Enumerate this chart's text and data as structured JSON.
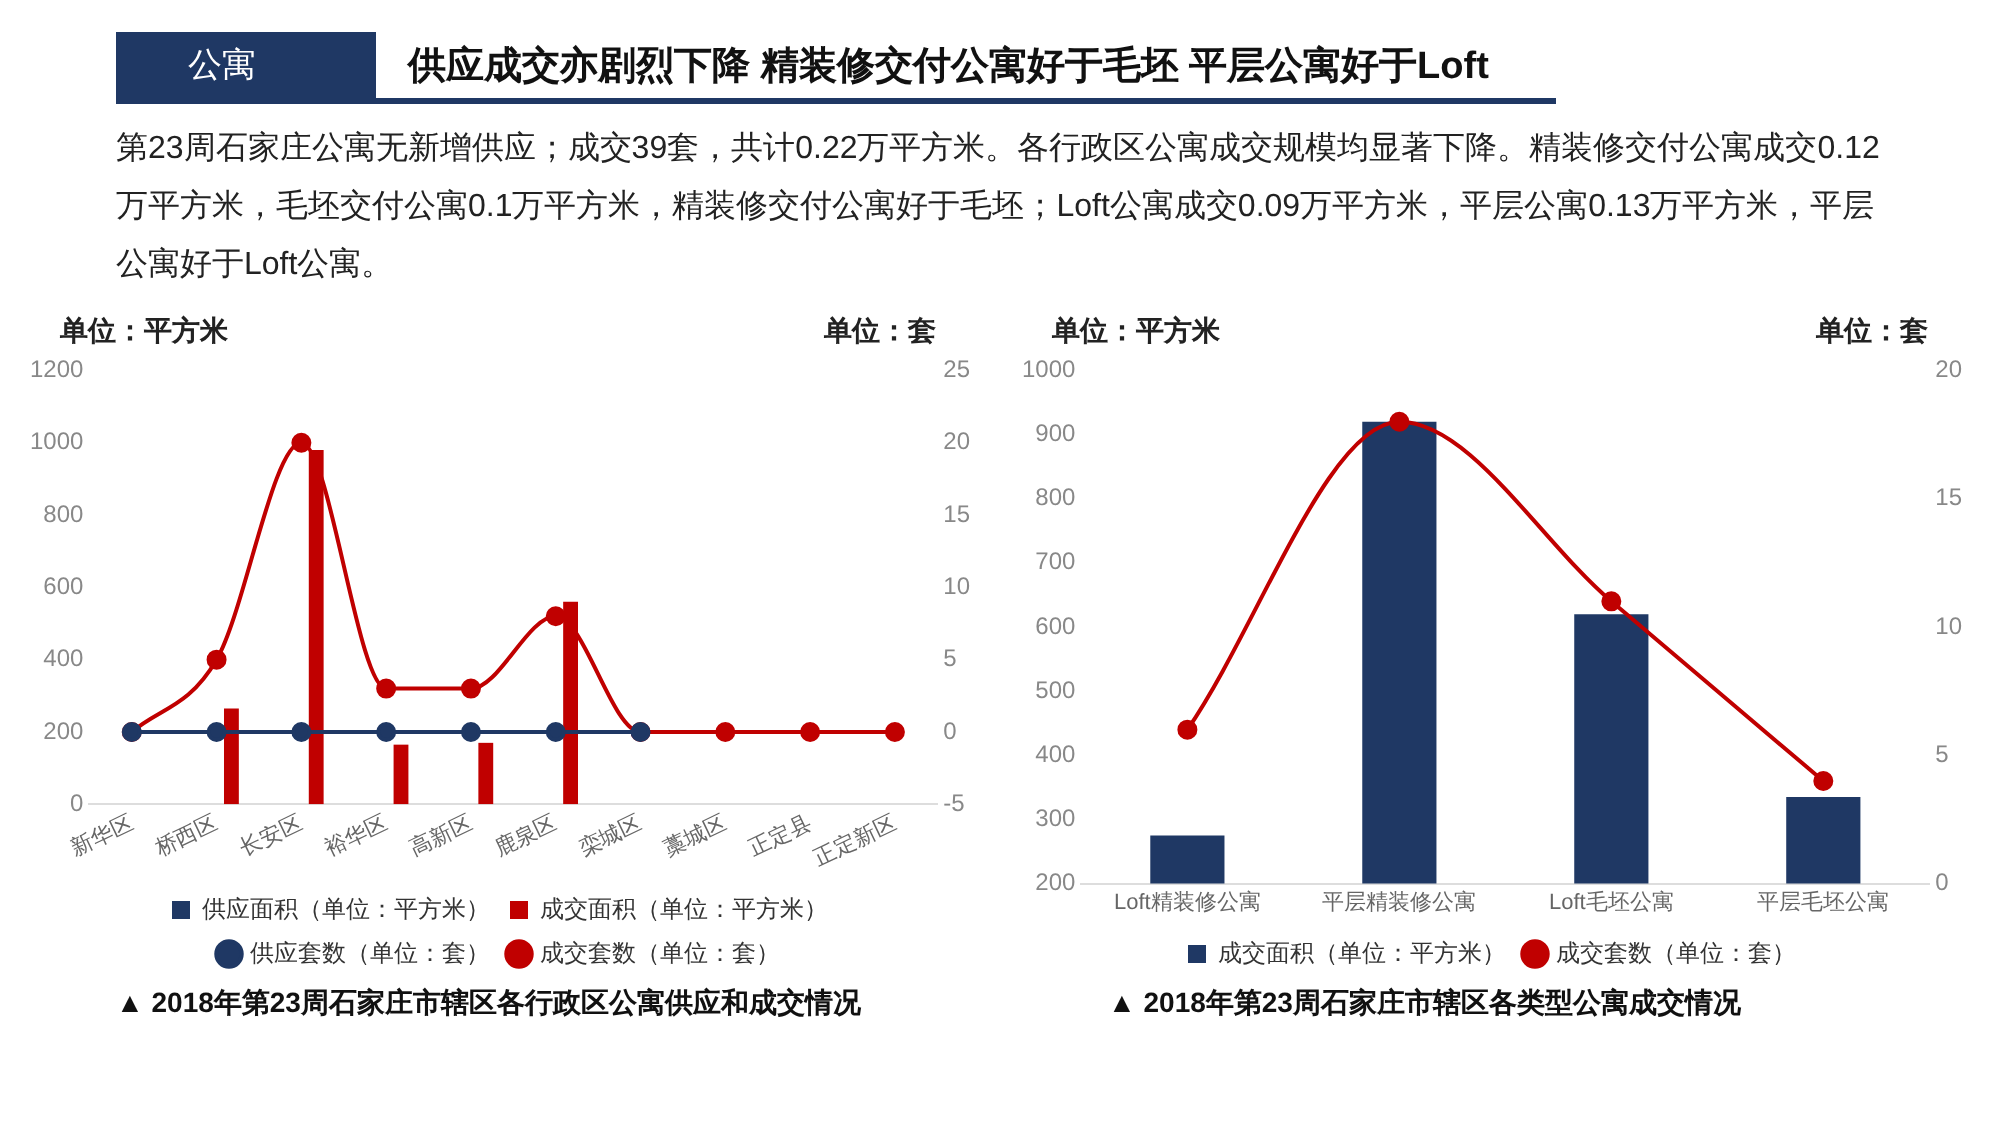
{
  "chart_data": [
    {
      "type": "other",
      "title": "供应成交亦剧烈下降 精装修交付公寓好于毛坯 平层公寓好于Loft",
      "subtitle": "第23周石家庄公寓无新增供应；成交39套，共计0.22万平方米。各行政区公寓成交规模均显著下降。精装修交付公寓成交0.12万平方米，毛坯交付公寓0.1万平方米，精装修交付公寓好于毛坯；Loft公寓成交0.09万平方米，平层公寓0.13万平方米，平层公寓好于Loft公寓。",
      "annotations": [
        "公寓"
      ]
    },
    {
      "type": "bar",
      "categories": [
        "新华区",
        "桥西区",
        "长安区",
        "裕华区",
        "高新区",
        "鹿泉区",
        "栾城区",
        "藁城区",
        "正定县",
        "正定新区"
      ],
      "series": [
        {
          "name": "供应面积（单位：平方米）",
          "color": "#1f3864",
          "values": [
            0,
            0,
            0,
            0,
            0,
            0,
            0,
            0,
            0,
            0
          ]
        },
        {
          "name": "成交面积（单位：平方米）",
          "color": "#c00000",
          "values": [
            0,
            265,
            980,
            165,
            170,
            560,
            0,
            0,
            0,
            0
          ]
        },
        {
          "name": "供应套数（单位：套）",
          "type": "line",
          "axis": "y2",
          "color": "#1f3864",
          "values": [
            0,
            0,
            0,
            0,
            0,
            0,
            0,
            null,
            null,
            null
          ]
        },
        {
          "name": "成交套数（单位：套）",
          "type": "line",
          "axis": "y2",
          "color": "#c00000",
          "values": [
            0,
            5,
            20,
            3,
            3,
            8,
            0,
            0,
            0,
            0
          ]
        }
      ],
      "ylabel": "单位：平方米",
      "y2label": "单位：套",
      "ylim": [
        0,
        1200
      ],
      "yticks": [
        0,
        200,
        400,
        600,
        800,
        1000,
        1200
      ],
      "y2lim": [
        -5,
        25
      ],
      "y2ticks": [
        -5,
        0,
        5,
        10,
        15,
        20,
        25
      ],
      "grid": false,
      "legend": "bottom",
      "marker": "circle",
      "annotations": [
        "▲ 2018年第23周石家庄市辖区各行政区公寓供应和成交情况"
      ]
    },
    {
      "type": "bar",
      "categories": [
        "Loft精装修公寓",
        "平层精装修公寓",
        "Loft毛坯公寓",
        "平层毛坯公寓"
      ],
      "series": [
        {
          "name": "成交面积（单位：平方米）",
          "color": "#1f3864",
          "values": [
            275,
            920,
            620,
            335
          ]
        },
        {
          "name": "成交套数（单位：套）",
          "type": "line",
          "axis": "y2",
          "color": "#c00000",
          "values": [
            6,
            18,
            11,
            4
          ]
        }
      ],
      "ylabel": "单位：平方米",
      "y2label": "单位：套",
      "ylim": [
        200,
        1000
      ],
      "yticks": [
        200,
        300,
        400,
        500,
        600,
        700,
        800,
        900,
        1000
      ],
      "y2lim": [
        0,
        20
      ],
      "y2ticks": [
        0,
        5,
        10,
        15,
        20
      ],
      "grid": false,
      "legend": "bottom",
      "marker": "circle",
      "annotations": [
        "▲ 2018年第23周石家庄市辖区各类型公寓成交情况"
      ]
    }
  ]
}
